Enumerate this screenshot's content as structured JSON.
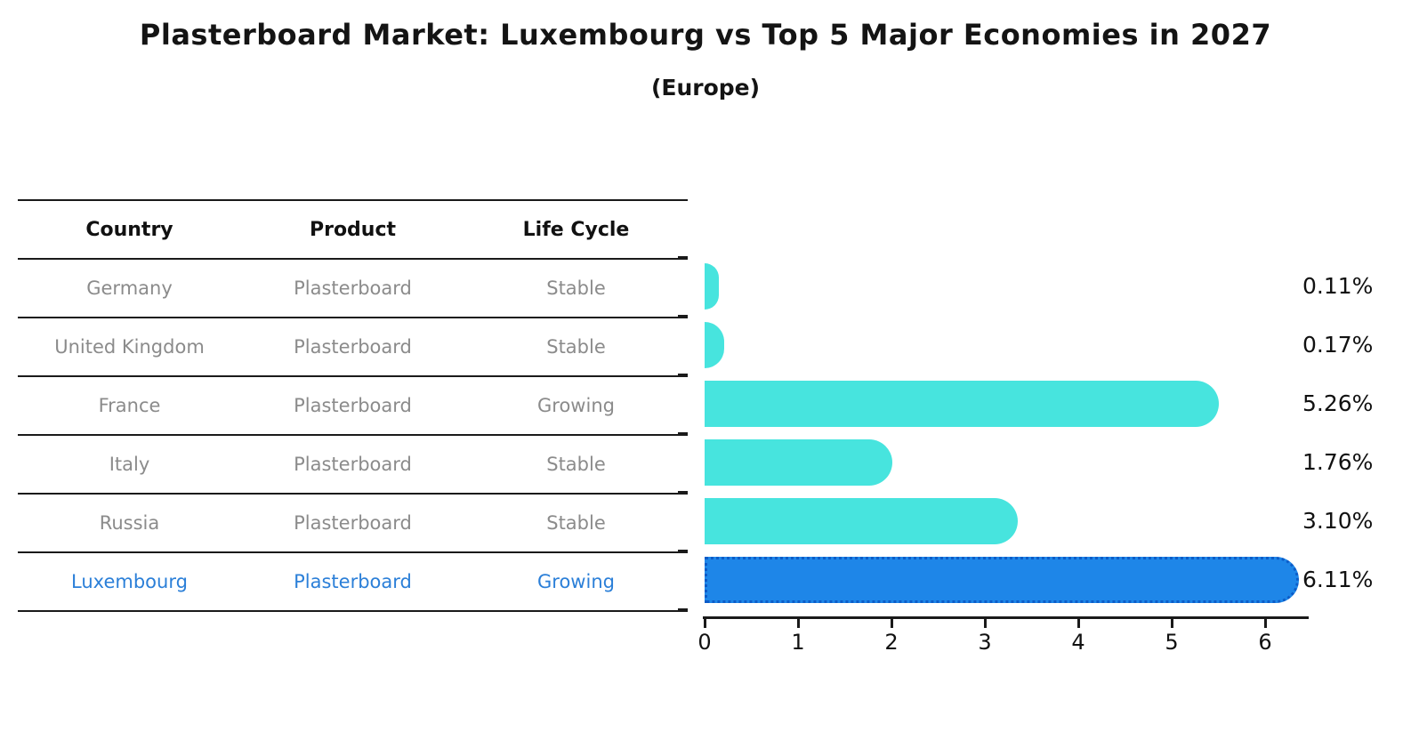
{
  "title": "Plasterboard Market: Luxembourg vs Top 5 Major Economies in 2027",
  "subtitle": "(Europe)",
  "table": {
    "headers": [
      "Country",
      "Product",
      "Life Cycle"
    ],
    "rows": [
      {
        "country": "Germany",
        "product": "Plasterboard",
        "life_cycle": "Stable",
        "highlight": false
      },
      {
        "country": "United Kingdom",
        "product": "Plasterboard",
        "life_cycle": "Stable",
        "highlight": false
      },
      {
        "country": "France",
        "product": "Plasterboard",
        "life_cycle": "Growing",
        "highlight": false
      },
      {
        "country": "Italy",
        "product": "Plasterboard",
        "life_cycle": "Stable",
        "highlight": false
      },
      {
        "country": "Russia",
        "product": "Plasterboard",
        "life_cycle": "Stable",
        "highlight": false
      },
      {
        "country": "Luxembourg",
        "product": "Plasterboard",
        "life_cycle": "Growing",
        "highlight": true
      }
    ]
  },
  "chart_data": {
    "type": "bar",
    "orientation": "horizontal",
    "title": "Plasterboard Market: Luxembourg vs Top 5 Major Economies in 2027",
    "subtitle": "(Europe)",
    "categories": [
      "Germany",
      "United Kingdom",
      "France",
      "Italy",
      "Russia",
      "Luxembourg"
    ],
    "values": [
      0.11,
      0.17,
      5.26,
      1.76,
      3.1,
      6.11
    ],
    "value_labels": [
      "0.11%",
      "0.17%",
      "5.26%",
      "1.76%",
      "3.10%",
      "6.11%"
    ],
    "highlight_index": 5,
    "x_ticks": [
      "0",
      "1",
      "2",
      "3",
      "4",
      "5",
      "6"
    ],
    "xlim": [
      0,
      6.46
    ],
    "grid": "off",
    "legend": "off"
  },
  "colors": {
    "bar": "#47E4DE",
    "highlight_bar": "#1E86E8",
    "highlight_border": "#0C5CC8",
    "row_text": "#8b8b8b",
    "highlight_text": "#2b7fd8",
    "axis": "#1a1a1a"
  }
}
